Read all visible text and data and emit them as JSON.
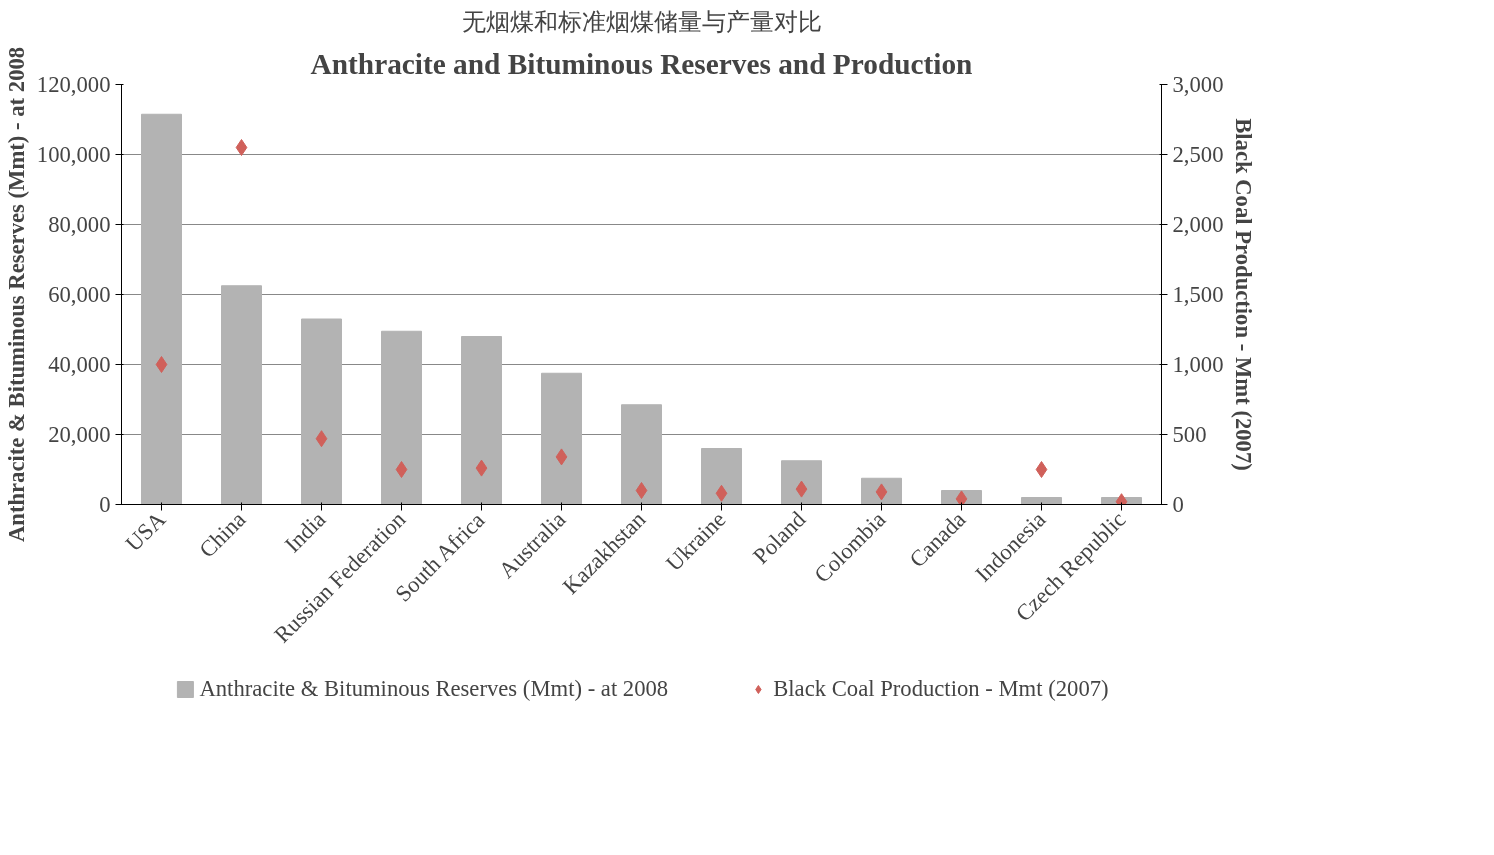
{
  "chart_data": {
    "type": "bar",
    "title": "Anthracite and Bituminous Reserves and Production",
    "subtitle": "无烟煤和标准烟煤储量与产量对比",
    "ylabel": "Anthracite & Bituminous Reserves (Mmt) - at 2008",
    "y2label": "Black Coal Production - Mmt (2007)",
    "categories": [
      "USA",
      "China",
      "India",
      "Russian Federation",
      "South Africa",
      "Australia",
      "Kazakhstan",
      "Ukraine",
      "Poland",
      "Colombia",
      "Canada",
      "Indonesia",
      "Czech Republic"
    ],
    "series": [
      {
        "name": "Anthracite & Bituminous Reserves (Mmt) - at 2008",
        "color": "#b3b3b3",
        "values": [
          111500,
          62500,
          53000,
          49500,
          48000,
          37500,
          28500,
          16000,
          12500,
          7500,
          4000,
          2000,
          2000
        ]
      },
      {
        "name": "Black Coal Production - Mmt (2007)",
        "type": "scatter",
        "axis": "y2",
        "marker": "diamond",
        "color": "#d0605a",
        "x": [
          "USA",
          "China",
          "India",
          "Russian Federation",
          "South Africa",
          "Australia",
          "Kazakhstan",
          "Ukraine",
          "Poland",
          "Colombia",
          "Canada",
          "Indonesia",
          "Czech Republic"
        ],
        "values": [
          1000,
          2550,
          470,
          250,
          260,
          340,
          100,
          80,
          110,
          90,
          40,
          250,
          20
        ]
      }
    ],
    "ylim": [
      0,
      120000
    ],
    "yticks": [
      {
        "value": 0,
        "label": "0"
      },
      {
        "value": 20000,
        "label": "20,000"
      },
      {
        "value": 40000,
        "label": "40,000"
      },
      {
        "value": 60000,
        "label": "60,000"
      },
      {
        "value": 80000,
        "label": "80,000"
      },
      {
        "value": 100000,
        "label": "100,000"
      },
      {
        "value": 120000,
        "label": "120,000"
      }
    ],
    "y2lim": [
      0,
      3000
    ],
    "y2ticks": [
      0,
      500,
      {
        "value": 1000,
        "label": "1,000"
      },
      {
        "value": 1500,
        "label": "1,500"
      },
      {
        "value": 2000,
        "label": "2,000"
      },
      {
        "value": 2500,
        "label": "2,500"
      },
      {
        "value": 3000,
        "label": "3,000"
      }
    ],
    "grid": "y",
    "legend": "bottom"
  }
}
